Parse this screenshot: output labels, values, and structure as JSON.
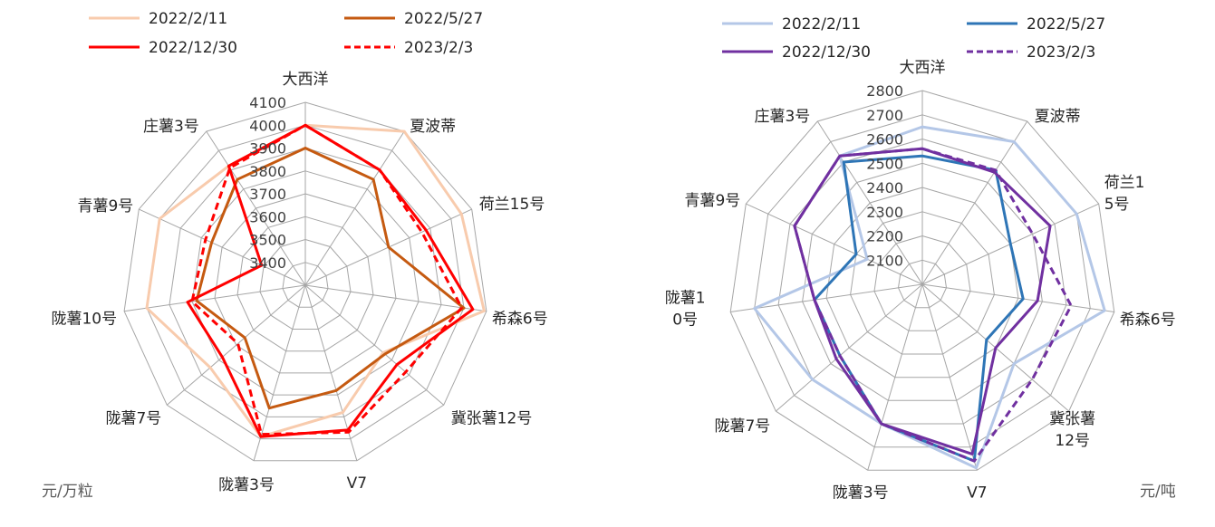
{
  "chart_data": [
    {
      "type": "radar",
      "unit": "元/万粒",
      "categories": [
        "大西洋",
        "夏波蒂",
        "荷兰15号",
        "希森6号",
        "冀张薯12号",
        "V7",
        "陇薯3号",
        "陇薯7号",
        "陇薯10号",
        "青薯9号",
        "庄薯3号"
      ],
      "ticks": [
        "3400",
        "3500",
        "3600",
        "3700",
        "3800",
        "3900",
        "4000",
        "4100"
      ],
      "rmin": 3300,
      "rmax": 4100,
      "series": [
        {
          "name": "2022/2/11",
          "color": "#f8cbad",
          "dash": "solid",
          "values": [
            4000,
            4100,
            4050,
            4090,
            3750,
            3880,
            3990,
            3850,
            4000,
            4000,
            3920
          ]
        },
        {
          "name": "2022/5/27",
          "color": "#c55a11",
          "dash": "solid",
          "values": [
            3900,
            3850,
            3700,
            4000,
            3760,
            3780,
            3860,
            3650,
            3780,
            3750,
            3850
          ]
        },
        {
          "name": "2022/12/30",
          "color": "#ff0000",
          "dash": "solid",
          "values": [
            4000,
            3900,
            3880,
            4040,
            3830,
            3960,
            3990,
            3780,
            3820,
            3510,
            3920
          ]
        },
        {
          "name": "2023/2/3",
          "color": "#ff0000",
          "dash": "dashed",
          "values": [
            4000,
            3900,
            3860,
            3990,
            3880,
            3970,
            3980,
            3690,
            3800,
            3780,
            3910
          ]
        }
      ]
    },
    {
      "type": "radar",
      "unit": "元/吨",
      "categories": [
        "大西洋",
        "夏波蒂",
        "荷兰15号",
        "希森6号",
        "冀张薯12号",
        "V7",
        "陇薯3号",
        "陇薯7号",
        "陇薯10号",
        "青薯9号",
        "庄薯3号"
      ],
      "ticks": [
        "2100",
        "2200",
        "2300",
        "2400",
        "2500",
        "2600",
        "2700",
        "2800"
      ],
      "rmin": 2000,
      "rmax": 2800,
      "series": [
        {
          "name": "2022/2/11",
          "color": "#b4c7e7",
          "dash": "solid",
          "values": [
            2650,
            2700,
            2700,
            2760,
            2500,
            2790,
            2600,
            2600,
            2700,
            2250,
            2630
          ]
        },
        {
          "name": "2022/5/27",
          "color": "#2e75b6",
          "dash": "solid",
          "values": [
            2530,
            2560,
            2400,
            2420,
            2350,
            2760,
            2600,
            2450,
            2450,
            2300,
            2600
          ]
        },
        {
          "name": "2022/12/30",
          "color": "#7030a0",
          "dash": "solid",
          "values": [
            2560,
            2550,
            2580,
            2480,
            2400,
            2730,
            2600,
            2470,
            2450,
            2580,
            2630
          ]
        },
        {
          "name": "2023/2/3",
          "color": "#7030a0",
          "dash": "dashed",
          "values": [
            2560,
            2560,
            2500,
            2620,
            2600,
            2760,
            2600,
            2450,
            2450,
            2580,
            2630
          ]
        }
      ]
    }
  ]
}
